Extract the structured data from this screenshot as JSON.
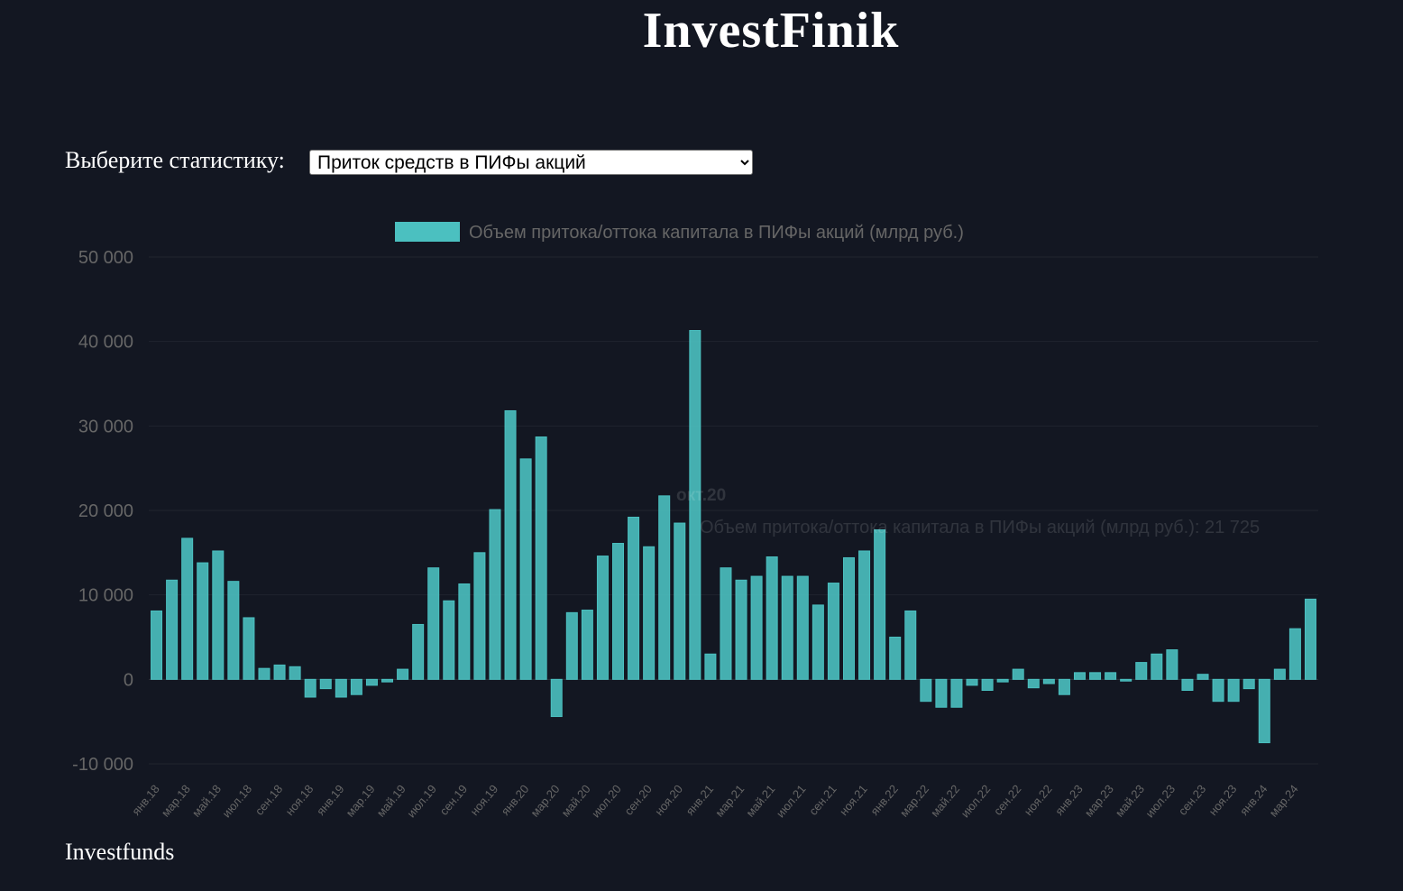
{
  "header": {
    "title": "InvestFinik"
  },
  "selector": {
    "label": "Выберите статистику:",
    "selected": "Приток средств в ПИФы акций"
  },
  "chart_data": {
    "type": "bar",
    "categories": [
      "янв.18",
      null,
      "мар.18",
      null,
      "май.18",
      null,
      "июл.18",
      null,
      "сен.18",
      null,
      "ноя.18",
      null,
      "янв.19",
      null,
      "мар.19",
      null,
      "май.19",
      null,
      "июл.19",
      null,
      "сен.19",
      null,
      "ноя.19",
      null,
      "янв.20",
      null,
      "мар.20",
      null,
      "май.20",
      null,
      "июл.20",
      null,
      "сен.20",
      null,
      "ноя.20",
      null,
      "янв.21",
      null,
      "мар.21",
      null,
      "май.21",
      null,
      "июл.21",
      null,
      "сен.21",
      null,
      "ноя.21",
      null,
      "янв.22",
      null,
      "мар.22",
      null,
      "май.22",
      null,
      "июл.22",
      null,
      "сен.22",
      null,
      "ноя.22",
      null,
      "янв.23",
      null,
      "мар.23",
      null,
      "май.23",
      null,
      "июл.23",
      null,
      "сен.23",
      null,
      "ноя.23",
      null,
      "янв.24",
      null,
      "мар.24",
      null
    ],
    "series": [
      {
        "name": "Объем притока/оттока капитала в ПИФы акций (млрд руб.)",
        "color": "#4bc0c0",
        "values": [
          8100,
          11750,
          16700,
          13800,
          15200,
          11600,
          7300,
          1300,
          1700,
          1500,
          -2100,
          -1100,
          -2100,
          -1800,
          -700,
          -300,
          1200,
          6500,
          13200,
          9300,
          11300,
          15000,
          20100,
          31800,
          26100,
          28700,
          -4400,
          7900,
          8200,
          14600,
          16100,
          19200,
          15700,
          21725,
          18500,
          41300,
          3000,
          13200,
          11750,
          12200,
          14500,
          12200,
          12200,
          8800,
          11400,
          14400,
          15200,
          17700,
          5000,
          8100,
          -2600,
          -3300,
          -3300,
          -700,
          -1300,
          -300,
          1200,
          -1000,
          -500,
          -1800,
          800,
          800,
          800,
          -200,
          2000,
          3000,
          3500,
          -1300,
          600,
          -2600,
          -2600,
          -1100,
          -7500,
          1200,
          6000,
          9500
        ]
      }
    ],
    "ylim": [
      -10000,
      50000
    ],
    "yticks": [
      {
        "value": -10000,
        "label": "-10 000"
      },
      0,
      {
        "value": 10000,
        "label": "10 000"
      },
      {
        "value": 20000,
        "label": "20 000"
      },
      {
        "value": 30000,
        "label": "30 000"
      },
      {
        "value": 40000,
        "label": "40 000"
      },
      {
        "value": 50000,
        "label": "50 000"
      }
    ],
    "grid": true,
    "legend": "top",
    "tooltip": {
      "title": "окт.20",
      "text": "Объем притока/оттока капитала в ПИФы акций (млрд руб.): 21 725"
    }
  },
  "footer": {
    "text": "Investfunds"
  }
}
